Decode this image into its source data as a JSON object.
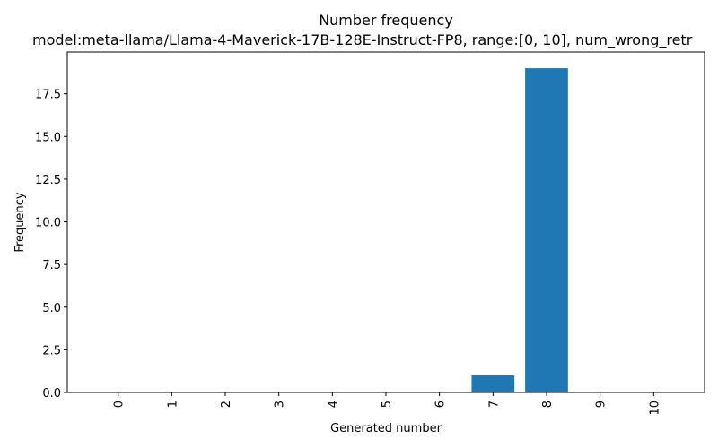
{
  "chart_data": {
    "type": "bar",
    "title": "Number frequency",
    "subtitle": "model:meta-llama/Llama-4-Maverick-17B-128E-Instruct-FP8, range:[0, 10], num_wrong_retr",
    "xlabel": "Generated number",
    "ylabel": "Frequency",
    "categories": [
      "0",
      "1",
      "2",
      "3",
      "4",
      "5",
      "6",
      "7",
      "8",
      "9",
      "10"
    ],
    "values": [
      0,
      0,
      0,
      0,
      0,
      0,
      0,
      1,
      19,
      0,
      0
    ],
    "ylim": [
      0,
      19.95
    ],
    "yticks": [
      "0.0",
      "2.5",
      "5.0",
      "7.5",
      "10.0",
      "12.5",
      "15.0",
      "17.5"
    ],
    "grid": false,
    "bar_color": "#1f77b4"
  }
}
